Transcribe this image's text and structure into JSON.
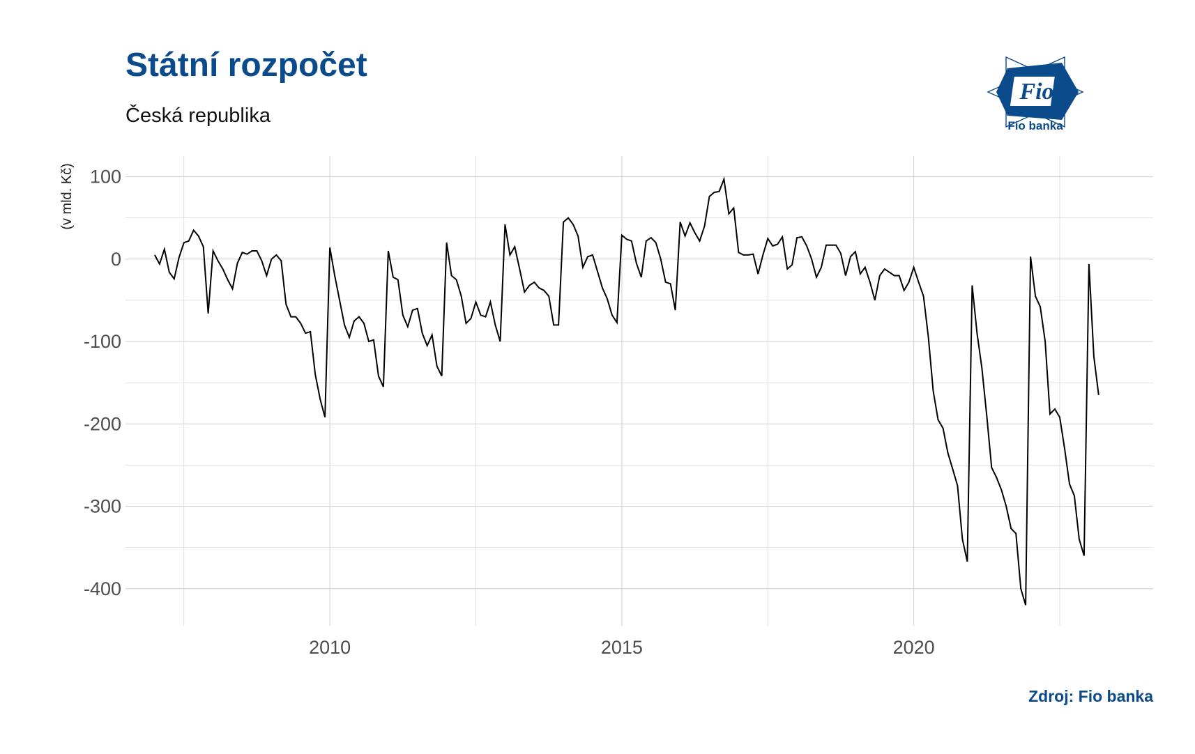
{
  "header": {
    "title": "Státní rozpočet",
    "subtitle": "Česká republika"
  },
  "logo": {
    "mark_text": "Fio",
    "bank_name": "Fio banka",
    "color": "#0b4a8b"
  },
  "footer": {
    "source": "Zdroj: Fio banka"
  },
  "colors": {
    "title": "#0b4a8b",
    "line": "#000000",
    "grid": "#d4d4d4",
    "tick_text": "#4d4d4d"
  },
  "chart_data": {
    "type": "line",
    "title": "Státní rozpočet",
    "subtitle": "Česká republika",
    "xlabel": "",
    "ylabel": "(v mld. Kč)",
    "xlim": [
      2006.5,
      2024.1
    ],
    "ylim": [
      -445,
      125
    ],
    "x_ticks": [
      2010,
      2015,
      2020
    ],
    "y_ticks": [
      100,
      0,
      -100,
      -200,
      -300,
      -400
    ],
    "grid": true,
    "legend": "none",
    "x_start_year": 2007,
    "x_step": "monthly",
    "values": [
      5,
      -6,
      12,
      -16,
      -24,
      2,
      20,
      22,
      35,
      28,
      15,
      -66,
      10,
      -2,
      -12,
      -25,
      -36,
      -5,
      8,
      6,
      10,
      10,
      -2,
      -20,
      0,
      5,
      -2,
      -55,
      -70,
      -70,
      -78,
      -90,
      -88,
      -140,
      -170,
      -192,
      14,
      -20,
      -50,
      -80,
      -95,
      -75,
      -70,
      -78,
      -100,
      -98,
      -142,
      -155,
      10,
      -22,
      -25,
      -68,
      -82,
      -62,
      -60,
      -90,
      -105,
      -92,
      -130,
      -142,
      20,
      -20,
      -25,
      -45,
      -78,
      -72,
      -52,
      -68,
      -70,
      -52,
      -80,
      -100,
      42,
      5,
      15,
      -12,
      -40,
      -32,
      -28,
      -35,
      -38,
      -45,
      -80,
      -80,
      45,
      50,
      42,
      28,
      -10,
      3,
      5,
      -15,
      -35,
      -48,
      -68,
      -77,
      29,
      24,
      22,
      -5,
      -22,
      22,
      26,
      20,
      0,
      -28,
      -30,
      -62,
      45,
      28,
      44,
      32,
      22,
      40,
      76,
      81,
      82,
      97,
      55,
      62,
      8,
      5,
      5,
      6,
      -18,
      5,
      25,
      16,
      18,
      27,
      -12,
      -7,
      26,
      27,
      16,
      0,
      -22,
      -10,
      17,
      17,
      17,
      7,
      -20,
      3,
      9,
      -18,
      -10,
      -28,
      -50,
      -20,
      -12,
      -16,
      -20,
      -20,
      -38,
      -28,
      -10,
      -28,
      -45,
      -95,
      -160,
      -195,
      -205,
      -235,
      -255,
      -275,
      -340,
      -367,
      -32,
      -90,
      -132,
      -190,
      -253,
      -265,
      -280,
      -300,
      -327,
      -333,
      -400,
      -420,
      3,
      -45,
      -58,
      -100,
      -188,
      -182,
      -192,
      -230,
      -273,
      -287,
      -340,
      -360,
      -6,
      -118,
      -165
    ]
  }
}
